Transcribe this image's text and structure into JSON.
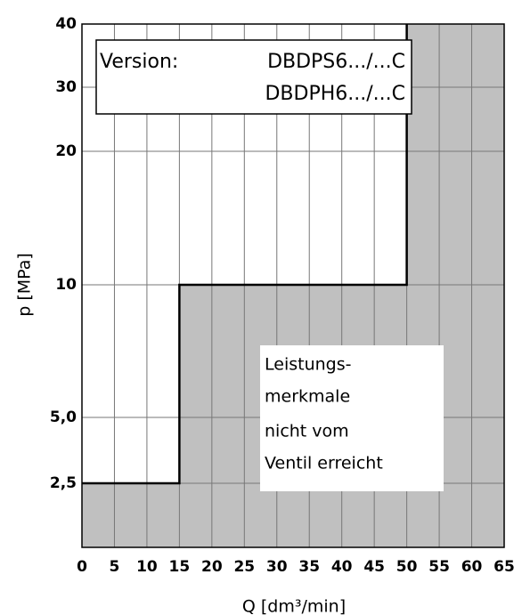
{
  "chart_data": {
    "type": "area",
    "xlabel": "Q [dm³/min]",
    "ylabel": "p [MPa]",
    "xlim": [
      0,
      65
    ],
    "xticks": [
      0,
      5,
      10,
      15,
      20,
      25,
      30,
      35,
      40,
      45,
      50,
      55,
      60,
      65
    ],
    "ylim": [
      0,
      40
    ],
    "yticks": [
      {
        "value": 2.5,
        "label": "2,5"
      },
      {
        "value": 5,
        "label": "5,0"
      },
      10,
      20,
      30,
      40
    ],
    "grid": true,
    "series": [
      {
        "color": "#c0c0c0",
        "x": [
          0,
          15,
          15,
          50,
          50
        ],
        "values": [
          2.5,
          2.5,
          10,
          10,
          40
        ]
      }
    ],
    "version_box": {
      "label": "Version:",
      "lines": [
        "DBDPS6.../...C",
        "DBDPH6.../...C"
      ]
    },
    "annotation": [
      "Leistungs-",
      "merkmale",
      "nicht vom",
      "Ventil erreicht"
    ]
  }
}
